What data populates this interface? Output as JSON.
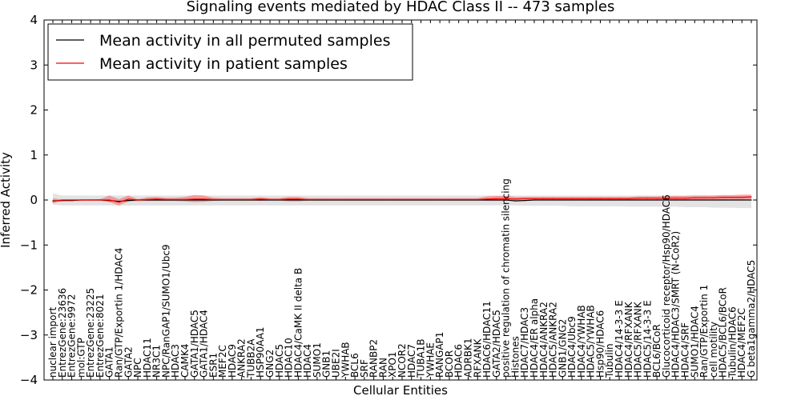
{
  "chart_data": {
    "type": "line",
    "title": "Signaling events mediated by HDAC Class II -- 473 samples",
    "xlabel": "Cellular Entities",
    "ylabel": "Inferred Activity",
    "ylim": [
      -4,
      4
    ],
    "yticks": [
      "4",
      "3",
      "2",
      "1",
      "0",
      "−1",
      "−2",
      "−3",
      "−4"
    ],
    "ytick_values": [
      4,
      3,
      2,
      1,
      0,
      -1,
      -2,
      -3,
      -4
    ],
    "legend_position": "top-left",
    "categories": [
      "nuclear import",
      "EntrezGene:23636",
      "EntrezGene:9972",
      "mol:GTP",
      "EntrezGene:23225",
      "EntrezGene:8021",
      "GATA1",
      "Ran/GTP/Exportin 1/HDAC4",
      "GATA2",
      "NPC",
      "HDAC11",
      "NR3C1",
      "NPC/RanGAP1/SUMO1/Ubc9",
      "HDAC3",
      "CAMK4",
      "GATA1/HDAC5",
      "GATA1/HDAC4",
      "ESR1",
      "MEF2C",
      "HDAC9",
      "ANKRA2",
      "TUBB2A",
      "HSP90AA1",
      "GNG2",
      "HDAC5",
      "HDAC10",
      "HDAC4/CaMK II delta B",
      "HDAC4",
      "SUMO1",
      "GNB1",
      "UBE2I",
      "YWHAB",
      "BCL6",
      "SRF",
      "RANBP2",
      "RAN",
      "XPO1",
      "NCOR2",
      "HDAC7",
      "TUBA1B",
      "YWHAE",
      "RANGAP1",
      "BCOR",
      "HDAC6",
      "ADRBK1",
      "RFXANK",
      "HDAC6/HDAC11",
      "GATA2/HDAC5",
      "positive regulation of chromatin silencing",
      "Histones",
      "HDAC7/HDAC3",
      "HDAC4/ER alpha",
      "HDAC4/ANKRA2",
      "HDAC5/ANKRA2",
      "GNB1/GNG2",
      "HDAC4/Ubc9",
      "HDAC4/YWHAB",
      "HDAC5/YWHAB",
      "Hsp90/HDAC6",
      "Tubulin",
      "HDAC4/14-3-3 E",
      "HDAC4/RFXANK",
      "HDAC5/RFXANK",
      "HDAC5/14-3-3 E",
      "BCL6/BCoR",
      "Glucocorticoid receptor/Hsp90/HDAC6",
      "HDAC4/HDAC3/SMRT (N-CoR2)",
      "HDAC4/SRF",
      "SUMO1/HDAC4",
      "Ran/GTP/Exportin 1",
      "cell motility",
      "HDAC5/BCL6/BCoR",
      "Tubulin/HDAC6",
      "HDAC4/MEF2C",
      "G beta1gamma2/HDAC5"
    ],
    "series": [
      {
        "name": "Mean activity in all permuted samples",
        "color": "#000000",
        "values": [
          -0.02,
          -0.01,
          -0.01,
          0.0,
          0.0,
          0.0,
          -0.01,
          -0.03,
          -0.01,
          0.0,
          0.0,
          0.0,
          0.0,
          0.0,
          0.0,
          0.0,
          0.0,
          0.0,
          0.0,
          0.0,
          0.0,
          0.0,
          0.0,
          0.0,
          0.0,
          0.0,
          0.0,
          0.0,
          0.0,
          0.0,
          0.0,
          0.0,
          0.0,
          0.0,
          0.0,
          0.0,
          0.0,
          0.0,
          0.0,
          0.0,
          0.0,
          0.0,
          0.0,
          0.0,
          0.0,
          0.0,
          0.0,
          0.0,
          0.0,
          -0.02,
          -0.01,
          0.0,
          0.0,
          0.0,
          0.0,
          0.0,
          0.0,
          0.0,
          0.0,
          0.0,
          0.0,
          0.0,
          0.0,
          0.0,
          0.0,
          0.0,
          0.0,
          0.0,
          0.0,
          0.0,
          0.0,
          0.0,
          0.0,
          0.0,
          0.0
        ],
        "lower": [
          -0.1,
          -0.12,
          -0.12,
          -0.12,
          -0.12,
          -0.12,
          -0.12,
          -0.13,
          -0.12,
          -0.12,
          -0.12,
          -0.12,
          -0.12,
          -0.12,
          -0.12,
          -0.12,
          -0.12,
          -0.12,
          -0.12,
          -0.12,
          -0.12,
          -0.12,
          -0.12,
          -0.12,
          -0.12,
          -0.12,
          -0.12,
          -0.12,
          -0.12,
          -0.12,
          -0.12,
          -0.12,
          -0.12,
          -0.12,
          -0.12,
          -0.12,
          -0.12,
          -0.12,
          -0.12,
          -0.12,
          -0.12,
          -0.12,
          -0.12,
          -0.12,
          -0.12,
          -0.12,
          -0.12,
          -0.12,
          -0.12,
          -0.12,
          -0.13,
          -0.13,
          -0.13,
          -0.13,
          -0.13,
          -0.14,
          -0.14,
          -0.14,
          -0.14,
          -0.14,
          -0.14,
          -0.15,
          -0.15,
          -0.15,
          -0.15,
          -0.15,
          -0.15,
          -0.16,
          -0.16,
          -0.16,
          -0.17,
          -0.17,
          -0.17,
          -0.18,
          -0.18
        ],
        "upper": [
          0.15,
          0.1,
          0.1,
          0.1,
          0.1,
          0.1,
          0.1,
          0.1,
          0.1,
          0.1,
          0.1,
          0.1,
          0.1,
          0.1,
          0.1,
          0.1,
          0.1,
          0.1,
          0.1,
          0.1,
          0.1,
          0.1,
          0.1,
          0.1,
          0.1,
          0.1,
          0.1,
          0.1,
          0.1,
          0.1,
          0.1,
          0.1,
          0.1,
          0.1,
          0.1,
          0.1,
          0.1,
          0.1,
          0.1,
          0.1,
          0.1,
          0.1,
          0.1,
          0.1,
          0.1,
          0.1,
          0.1,
          0.1,
          0.1,
          0.1,
          0.1,
          0.1,
          0.1,
          0.1,
          0.1,
          0.1,
          0.1,
          0.1,
          0.1,
          0.1,
          0.1,
          0.1,
          0.1,
          0.1,
          0.1,
          0.1,
          0.1,
          0.1,
          0.1,
          0.1,
          0.1,
          0.1,
          0.1,
          0.1,
          0.1
        ]
      },
      {
        "name": "Mean activity in patient samples",
        "color": "#ff0000",
        "values": [
          -0.03,
          0.0,
          0.0,
          0.0,
          0.0,
          0.0,
          0.0,
          -0.05,
          0.02,
          0.0,
          0.01,
          0.02,
          0.01,
          0.01,
          0.01,
          0.02,
          0.02,
          0.01,
          0.01,
          0.01,
          0.01,
          0.01,
          0.02,
          0.01,
          0.01,
          0.02,
          0.02,
          0.01,
          0.01,
          0.01,
          0.01,
          0.01,
          0.01,
          0.01,
          0.01,
          0.01,
          0.01,
          0.01,
          0.01,
          0.01,
          0.01,
          0.01,
          0.01,
          0.01,
          0.01,
          0.01,
          0.02,
          0.03,
          0.03,
          0.02,
          0.03,
          0.03,
          0.03,
          0.03,
          0.03,
          0.03,
          0.03,
          0.03,
          0.03,
          0.03,
          0.03,
          0.03,
          0.04,
          0.04,
          0.04,
          0.04,
          0.04,
          0.04,
          0.05,
          0.05,
          0.05,
          0.06,
          0.06,
          0.06,
          0.07
        ],
        "lower": [
          -0.08,
          -0.01,
          -0.01,
          -0.01,
          -0.01,
          -0.01,
          -0.05,
          -0.12,
          -0.03,
          -0.02,
          -0.02,
          -0.02,
          -0.02,
          -0.02,
          -0.03,
          -0.05,
          -0.04,
          -0.02,
          -0.01,
          -0.01,
          -0.01,
          -0.01,
          -0.02,
          -0.01,
          -0.01,
          -0.03,
          -0.03,
          -0.01,
          -0.01,
          -0.01,
          -0.01,
          -0.01,
          -0.01,
          -0.01,
          -0.01,
          -0.01,
          -0.01,
          -0.01,
          -0.01,
          -0.01,
          -0.01,
          -0.01,
          -0.01,
          -0.01,
          -0.01,
          -0.01,
          -0.02,
          -0.02,
          -0.02,
          -0.01,
          -0.01,
          0.0,
          0.0,
          0.0,
          0.0,
          0.0,
          0.0,
          0.0,
          0.0,
          0.0,
          0.0,
          0.0,
          0.0,
          0.0,
          0.0,
          0.0,
          0.0,
          0.0,
          0.0,
          0.01,
          0.01,
          0.01,
          0.01,
          0.01,
          0.02
        ],
        "upper": [
          0.04,
          0.01,
          0.01,
          0.01,
          0.01,
          0.02,
          0.1,
          0.02,
          0.1,
          0.02,
          0.06,
          0.07,
          0.05,
          0.05,
          0.07,
          0.11,
          0.1,
          0.05,
          0.04,
          0.04,
          0.04,
          0.04,
          0.06,
          0.04,
          0.04,
          0.07,
          0.07,
          0.04,
          0.04,
          0.04,
          0.04,
          0.04,
          0.04,
          0.04,
          0.04,
          0.04,
          0.04,
          0.04,
          0.04,
          0.04,
          0.04,
          0.04,
          0.04,
          0.04,
          0.04,
          0.04,
          0.08,
          0.09,
          0.09,
          0.07,
          0.07,
          0.07,
          0.07,
          0.07,
          0.07,
          0.07,
          0.07,
          0.07,
          0.07,
          0.07,
          0.07,
          0.07,
          0.08,
          0.08,
          0.08,
          0.09,
          0.09,
          0.09,
          0.1,
          0.1,
          0.1,
          0.11,
          0.11,
          0.12,
          0.12
        ]
      }
    ]
  }
}
